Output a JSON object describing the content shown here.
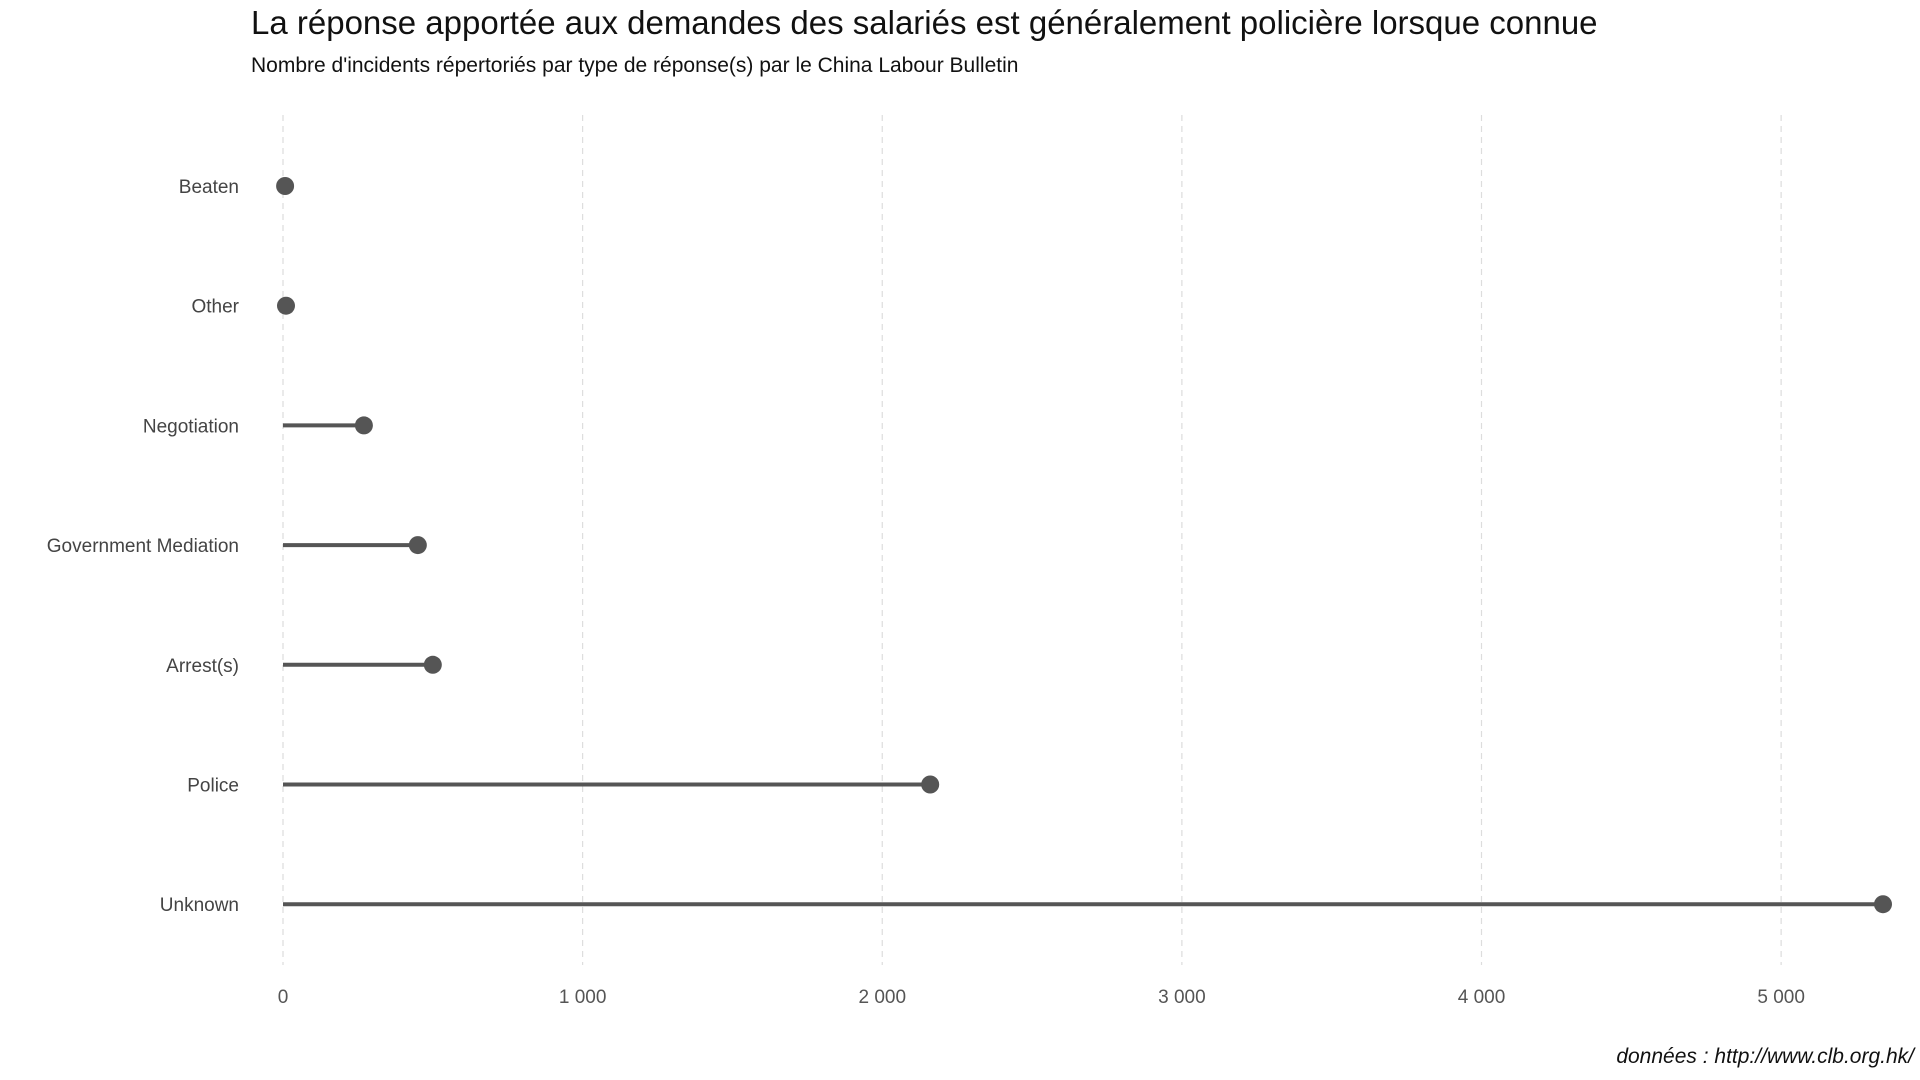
{
  "chart_data": {
    "type": "lollipop",
    "title": "La réponse apportée aux demandes des salariés est généralement policière lorsque connue",
    "subtitle": "Nombre d'incidents répertoriés par type de réponse(s) par le China Labour Bulletin",
    "caption": "données : http://www.clb.org.hk/",
    "xlabel": "",
    "ylabel": "",
    "categories": [
      "Beaten",
      "Other",
      "Negotiation",
      "Government Mediation",
      "Arrest(s)",
      "Police",
      "Unknown"
    ],
    "values": [
      7,
      10,
      270,
      450,
      500,
      2160,
      5340
    ],
    "xlim": [
      0,
      5340
    ],
    "xticks": [
      0,
      1000,
      2000,
      3000,
      4000,
      5000
    ],
    "xtick_labels": [
      "0",
      "1 000",
      "2 000",
      "3 000",
      "4 000",
      "5 000"
    ],
    "grid": "vertical dashed",
    "legend": "none",
    "colors": {
      "mark": "#555555",
      "grid": "#dddddd"
    }
  }
}
